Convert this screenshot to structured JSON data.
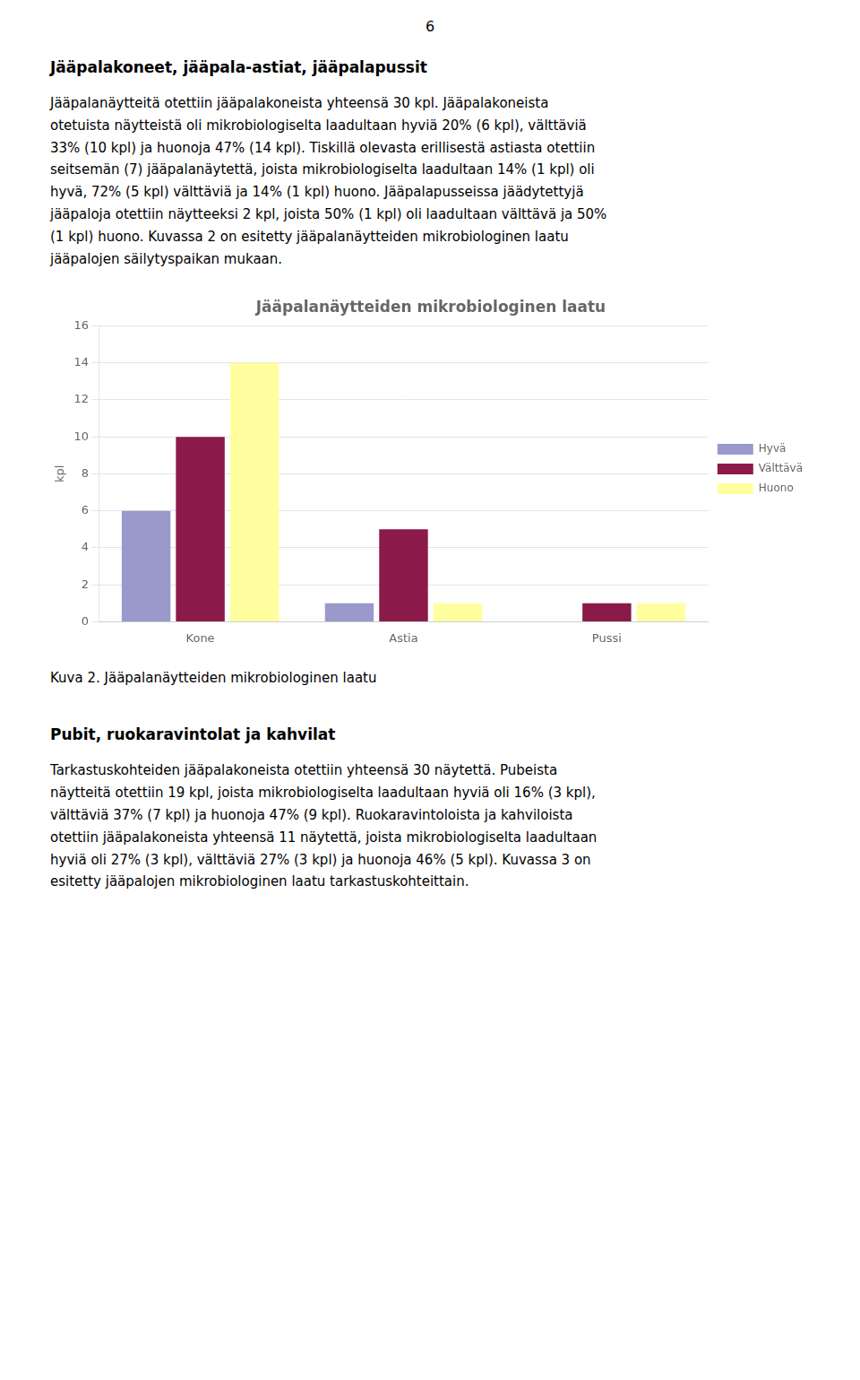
{
  "chart_data": {
    "type": "bar",
    "title": "Jääpalanäytteiden mikrobiologinen laatu",
    "categories": [
      "Kone",
      "Astia",
      "Pussi"
    ],
    "series": [
      {
        "name": "Hyvä",
        "color": "#9999cc",
        "values": [
          6,
          1,
          0
        ]
      },
      {
        "name": "Välttävä",
        "color": "#8B1A4A",
        "values": [
          10,
          5,
          1
        ]
      },
      {
        "name": "Huono",
        "color": "#FFFFA0",
        "values": [
          14,
          1,
          1
        ]
      }
    ],
    "y_label": "kpl",
    "ylim": [
      0,
      16
    ],
    "yticks": [
      0,
      2,
      4,
      6,
      8,
      10,
      12,
      14,
      16
    ],
    "grid": true,
    "legend": "right",
    "annotations": [
      "6",
      "Jääpalakoneet, jääpala-astiat, jääpalapussit",
      [
        "Jääpalanäytteitä otettiin jääpalakoneista yhteensä 30 kpl. Jääpalakoneista",
        "otetuista näytteistä oli mikrobiologiselta laadultaan hyviä 20% (6 kpl), välttäviä",
        "33% (10 kpl) ja huonoja 47% (14 kpl). Tiskillä olevasta erillisestä astiasta otettiin",
        "seitsemän (7) jääpalanäytettä, joista mikrobiologiselta laadultaan 14% (1 kpl) oli",
        "hyvä, 72% (5 kpl) välttäviä ja 14% (1 kpl) huono. Jääpalapusseissa jäädytettyjä",
        "jääpaloja otettiin näytteeksi 2 kpl, joista 50% (1 kpl) oli laadultaan välttävä ja 50%",
        "(1 kpl) huono. Kuvassa 2 on esitetty jääpalanäytteiden mikrobiologinen laatu",
        "jääpalojen säilytyspaikan mukaan."
      ],
      "Kuva 2. Jääpalanäytteiden mikrobiologinen laatu",
      "Pubit, ruokaravintolat ja kahvilat",
      [
        "Tarkastuskohteiden jääpalakoneista otettiin yhteensä 30 näytettä. Pubeista",
        "näytteitä otettiin 19 kpl, joista mikrobiologiselta laadultaan hyviä oli 16% (3 kpl),",
        "välttäviä 37% (7 kpl) ja huonoja 47% (9 kpl). Ruokaravintoloista ja kahviloista",
        "otettiin jääpalakoneista yhteensä 11 näytettä, joista mikrobiologiselta laadultaan",
        "hyviä oli 27% (3 kpl), välttäviä 27% (3 kpl) ja huonoja 46% (5 kpl). Kuvassa 3 on",
        "esitetty jääpalojen mikrobiologinen laatu tarkastuskohteittain."
      ]
    ]
  }
}
